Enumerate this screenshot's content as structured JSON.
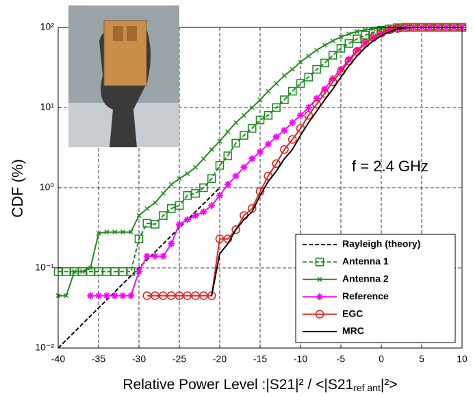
{
  "chart_data": {
    "type": "line",
    "log_y": true,
    "grid": true,
    "ylabel": "CDF (%)",
    "xlabel": [
      "Relative Power Level :|S21|² / <|S21",
      "ref ant",
      "|²>"
    ],
    "annotation": "f = 2.4 GHz",
    "legend": "lower right",
    "xlim": [
      -40,
      10
    ],
    "xticks": [
      -40,
      -35,
      -30,
      -25,
      -20,
      -15,
      -10,
      -5,
      0,
      5,
      10
    ],
    "ylim": [
      0.01,
      100
    ],
    "yticks": [
      {
        "value": 0.01,
        "label": "10⁻²"
      },
      {
        "value": 0.1,
        "label": "10⁻¹"
      },
      {
        "value": 1,
        "label": "10⁰"
      },
      {
        "value": 10,
        "label": "10¹"
      },
      {
        "value": 100,
        "label": "10²"
      }
    ],
    "x": [
      -40,
      -39,
      -38,
      -37,
      -36,
      -35,
      -34,
      -33,
      -32,
      -31,
      -30,
      -29,
      -28,
      -27,
      -26,
      -25,
      -24,
      -23,
      -22,
      -21,
      -20,
      -19,
      -18,
      -17,
      -16,
      -15,
      -14,
      -13,
      -12,
      -11,
      -10,
      -9,
      -8,
      -7,
      -6,
      -5,
      -4,
      -3,
      -2,
      -1,
      0,
      1,
      2,
      3,
      4,
      5,
      6,
      7,
      8,
      9,
      10
    ],
    "series": [
      {
        "name": "Rayleigh (theory)",
        "color": "#000000",
        "dash": true,
        "marker": "none",
        "values": [
          0.01,
          0.0126,
          0.0158,
          0.02,
          0.0251,
          0.0316,
          0.0398,
          0.0501,
          0.0631,
          0.0794,
          0.1,
          0.126,
          0.158,
          0.2,
          0.251,
          0.316,
          0.398,
          0.501,
          0.631,
          0.794,
          1.0,
          null,
          null,
          null,
          null,
          null,
          null,
          null,
          null,
          null,
          null,
          null,
          null,
          null,
          null,
          null,
          null,
          null,
          null,
          null,
          null,
          null,
          null,
          null,
          null,
          null,
          null,
          null,
          null,
          null,
          null
        ]
      },
      {
        "name": "Antenna 1",
        "color": "#1e8c1e",
        "dash": true,
        "marker": "square",
        "values": [
          0.09,
          0.09,
          0.09,
          0.09,
          0.09,
          0.09,
          0.09,
          0.09,
          0.09,
          0.09,
          0.23,
          0.36,
          0.35,
          0.45,
          0.55,
          0.6,
          0.8,
          0.85,
          1.0,
          1.3,
          1.9,
          2.5,
          3.6,
          4.5,
          5.5,
          7,
          8,
          10,
          12.5,
          16,
          20,
          24,
          30,
          36,
          45,
          55,
          63,
          72,
          80,
          87,
          92,
          96,
          99,
          100,
          100,
          100,
          100,
          100,
          100,
          100,
          100
        ]
      },
      {
        "name": "Antenna 2",
        "color": "#1e8c1e",
        "dash": false,
        "marker": "x",
        "values": [
          0.045,
          0.045,
          0.09,
          0.09,
          0.1,
          0.27,
          0.28,
          0.28,
          0.28,
          0.28,
          0.45,
          0.55,
          0.65,
          0.85,
          1.1,
          1.3,
          1.5,
          1.8,
          2.3,
          3,
          3.8,
          5,
          6.5,
          8,
          10,
          12.5,
          16,
          20,
          25,
          30,
          37,
          44,
          52,
          60,
          68,
          76,
          83,
          89,
          93,
          96,
          98,
          99.5,
          100,
          100,
          100,
          100,
          100,
          100,
          100,
          100,
          100
        ]
      },
      {
        "name": "Reference",
        "color": "#ff00ff",
        "dash": false,
        "marker": "star",
        "values": [
          null,
          null,
          null,
          null,
          0.045,
          0.045,
          0.045,
          0.045,
          0.045,
          0.045,
          0.09,
          0.14,
          0.14,
          0.14,
          0.2,
          0.35,
          0.4,
          0.45,
          0.5,
          0.6,
          0.8,
          1.1,
          1.4,
          1.8,
          2.3,
          2.8,
          3.5,
          4.3,
          5.2,
          6.5,
          8,
          10,
          13,
          17,
          23,
          30,
          40,
          52,
          64,
          75,
          85,
          92,
          97,
          99,
          100,
          100,
          100,
          100,
          100,
          100,
          100
        ]
      },
      {
        "name": "EGC",
        "color": "#e8231e",
        "dash": false,
        "marker": "circle",
        "values": [
          null,
          null,
          null,
          null,
          null,
          null,
          null,
          null,
          null,
          null,
          null,
          0.045,
          0.045,
          0.045,
          0.045,
          0.045,
          0.045,
          0.045,
          0.045,
          0.045,
          0.23,
          0.23,
          0.3,
          0.45,
          0.55,
          0.9,
          1.4,
          2,
          3,
          4,
          5.5,
          8,
          11,
          15,
          21,
          28,
          38,
          50,
          63,
          75,
          85,
          93,
          97,
          99,
          100,
          100,
          100,
          100,
          100,
          100,
          100
        ]
      },
      {
        "name": "MRC",
        "color": "#000000",
        "dash": false,
        "marker": "none",
        "values": [
          null,
          null,
          null,
          null,
          null,
          null,
          null,
          null,
          null,
          null,
          null,
          null,
          null,
          null,
          null,
          null,
          null,
          null,
          null,
          0.045,
          0.15,
          0.2,
          0.3,
          0.4,
          0.5,
          0.8,
          1.2,
          1.6,
          2.3,
          3,
          4.5,
          6.5,
          9,
          12.5,
          17,
          24,
          33,
          44,
          56,
          68,
          79,
          88,
          95,
          99,
          100,
          100,
          100,
          100,
          100,
          100,
          100
        ]
      }
    ]
  }
}
